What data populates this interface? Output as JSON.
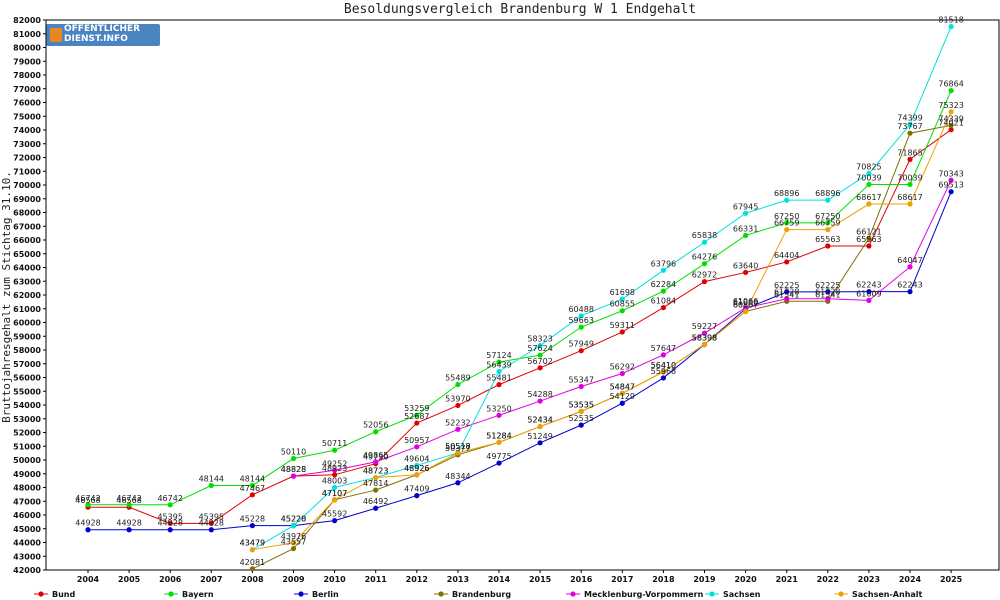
{
  "logo": {
    "line1": "OFFENTLICHER",
    "line2": "DIENST.INFO"
  },
  "chart_data": {
    "type": "line",
    "title": "Besoldungsvergleich Brandenburg W 1 Endgehalt",
    "ylabel": "Bruttojahresgehalt zum Stichtag 31.10.",
    "xlabel": "",
    "ylim": [
      42000,
      82000
    ],
    "yticks": [
      42000,
      43000,
      44000,
      45000,
      46000,
      47000,
      48000,
      49000,
      50000,
      51000,
      52000,
      53000,
      54000,
      55000,
      56000,
      57000,
      58000,
      59000,
      60000,
      61000,
      62000,
      63000,
      64000,
      65000,
      66000,
      67000,
      68000,
      69000,
      70000,
      71000,
      72000,
      73000,
      74000,
      75000,
      76000,
      77000,
      78000,
      79000,
      80000,
      81000,
      82000
    ],
    "categories": [
      "2004",
      "2005",
      "2006",
      "2007",
      "2008",
      "2009",
      "2010",
      "2011",
      "2012",
      "2013",
      "2014",
      "2015",
      "2016",
      "2017",
      "2018",
      "2019",
      "2020",
      "2021",
      "2022",
      "2023",
      "2024",
      "2025"
    ],
    "grid": false,
    "legend": "bottom",
    "series": [
      {
        "name": "Bund",
        "color": "#e00000",
        "values": [
          46568,
          46568,
          45395,
          45395,
          47467,
          48828,
          48923,
          49730,
          52687,
          53970,
          55481,
          56702,
          57949,
          59311,
          61084,
          62972,
          63640,
          64404,
          65563,
          65563,
          71865,
          74021
        ]
      },
      {
        "name": "Bayern",
        "color": "#00e000",
        "values": [
          46742,
          46742,
          46742,
          48144,
          48144,
          50110,
          50711,
          52056,
          53259,
          55489,
          57124,
          57624,
          59663,
          60855,
          62284,
          64276,
          66331,
          67250,
          67250,
          70039,
          70039,
          76864
        ]
      },
      {
        "name": "Berlin",
        "color": "#0000d0",
        "values": [
          44928,
          44928,
          44928,
          44928,
          45228,
          45228,
          45592,
          46492,
          47409,
          48344,
          49775,
          51249,
          52535,
          54129,
          55968,
          58398,
          61000,
          62225,
          62225,
          62243,
          62243,
          69513
        ]
      },
      {
        "name": "Brandenburg",
        "color": "#807000",
        "values": [
          null,
          null,
          null,
          null,
          42081,
          43557,
          47107,
          47814,
          48926,
          50377,
          51284,
          52434,
          53535,
          54847,
          56410,
          58398,
          60807,
          61541,
          61541,
          66121,
          73767,
          74339
        ]
      },
      {
        "name": "Mecklenburg-Vorpommern",
        "color": "#e000e0",
        "values": [
          null,
          null,
          null,
          null,
          null,
          48828,
          49252,
          49865,
          50957,
          52232,
          53250,
          54288,
          55347,
          56292,
          57647,
          59227,
          61066,
          61728,
          61728,
          61609,
          64047,
          70343
        ]
      },
      {
        "name": "Sachsen",
        "color": "#00e0e0",
        "values": [
          null,
          null,
          null,
          null,
          43479,
          45220,
          48003,
          48723,
          49604,
          50518,
          56439,
          58323,
          60488,
          61698,
          63796,
          65838,
          67945,
          68896,
          68896,
          70825,
          74399,
          81518
        ]
      },
      {
        "name": "Sachsen-Anhalt",
        "color": "#f0a000",
        "values": [
          null,
          null,
          null,
          null,
          43479,
          43976,
          47107,
          48723,
          48926,
          50518,
          51284,
          52434,
          53535,
          54847,
          56410,
          58398,
          60807,
          66759,
          66759,
          68617,
          68617,
          75323
        ]
      }
    ],
    "data_labels": [
      {
        "series": "Bund",
        "labels": [
          "46568",
          "46568",
          "45395",
          "45395",
          "47467",
          "48828",
          "48923",
          "49730",
          "52687",
          "53970",
          "55481",
          "56702",
          "57949",
          "59311",
          "61084",
          "62972",
          "63640",
          "64404",
          "65563",
          "65563",
          "71865",
          "74021"
        ]
      },
      {
        "series": "Bayern",
        "labels": [
          "46742",
          "46742",
          "46742",
          "48144",
          "48144",
          "50110",
          "50711",
          "52056",
          "53259",
          "55489",
          "57124",
          "57624",
          "59663",
          "60855",
          "62284",
          "64276",
          "66331",
          "67250",
          "67250",
          "70039",
          "70039",
          "76864"
        ]
      },
      {
        "series": "Berlin",
        "labels": [
          "44928",
          "44928",
          "44928",
          "44928",
          "45228",
          "45228",
          "45592",
          "46492",
          "47409",
          "48344",
          "49775",
          "51249",
          "52535",
          "54129",
          "55968",
          "58398",
          "61000",
          "62225",
          "62225",
          "62243",
          "62243",
          "69513"
        ]
      },
      {
        "series": "Brandenburg",
        "labels": [
          "",
          "",
          "",
          "",
          "42081",
          "43557",
          "47107",
          "47814",
          "48926",
          "50377",
          "51284",
          "52434",
          "53535",
          "54847",
          "56410",
          "58398",
          "60807",
          "61541",
          "61541",
          "66121",
          "73767",
          "74339"
        ]
      },
      {
        "series": "Mecklenburg-Vorpommern",
        "labels": [
          "",
          "",
          "",
          "",
          "",
          "48828",
          "49252",
          "49865",
          "50957",
          "52232",
          "53250",
          "54288",
          "55347",
          "56292",
          "57647",
          "59227",
          "61066",
          "61728",
          "61728",
          "61609",
          "64047",
          "70343"
        ]
      },
      {
        "series": "Sachsen",
        "labels": [
          "",
          "",
          "",
          "",
          "43479",
          "45220",
          "48003",
          "48723",
          "49604",
          "50518",
          "56439",
          "58323",
          "60488",
          "61698",
          "63796",
          "65838",
          "67945",
          "68896",
          "68896",
          "70825",
          "74399",
          "81518"
        ]
      },
      {
        "series": "Sachsen-Anhalt",
        "labels": [
          "",
          "",
          "",
          "",
          "43479",
          "43976",
          "47107",
          "48723",
          "48926",
          "50518",
          "51284",
          "52434",
          "53535",
          "54847",
          "56410",
          "58398",
          "60807",
          "66759",
          "66759",
          "68617",
          "68617",
          "75323"
        ]
      }
    ]
  }
}
